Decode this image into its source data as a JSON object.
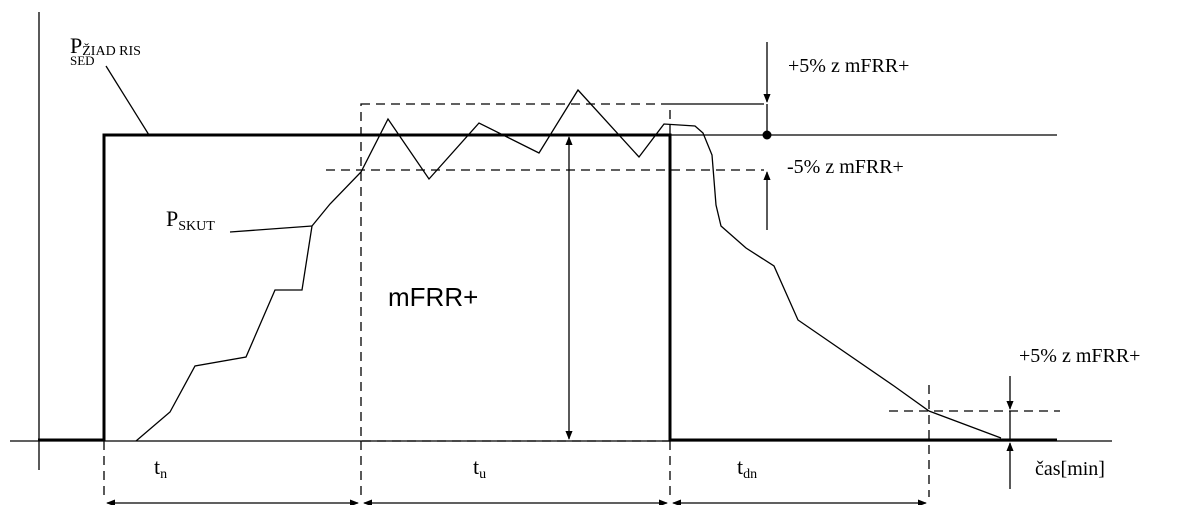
{
  "labels": {
    "p_ziad_main": "P",
    "p_ziad_sub1": "ŽIAD RIS",
    "p_ziad_sub2": "SED",
    "p_skut_main": "P",
    "p_skut_sub": "SKUT",
    "mfrr": "mFRR+",
    "plus5_top": "+5% z mFRR+",
    "minus5": "-5% z mFRR+",
    "plus5_bottom": "+5% z mFRR+",
    "time_axis": "čas[min]",
    "tn_main": "t",
    "tn_sub": "n",
    "tu_main": "t",
    "tu_sub": "u",
    "tdn_main": "t",
    "tdn_sub": "dn"
  },
  "colors": {
    "line": "#000000",
    "background": "#ffffff"
  }
}
